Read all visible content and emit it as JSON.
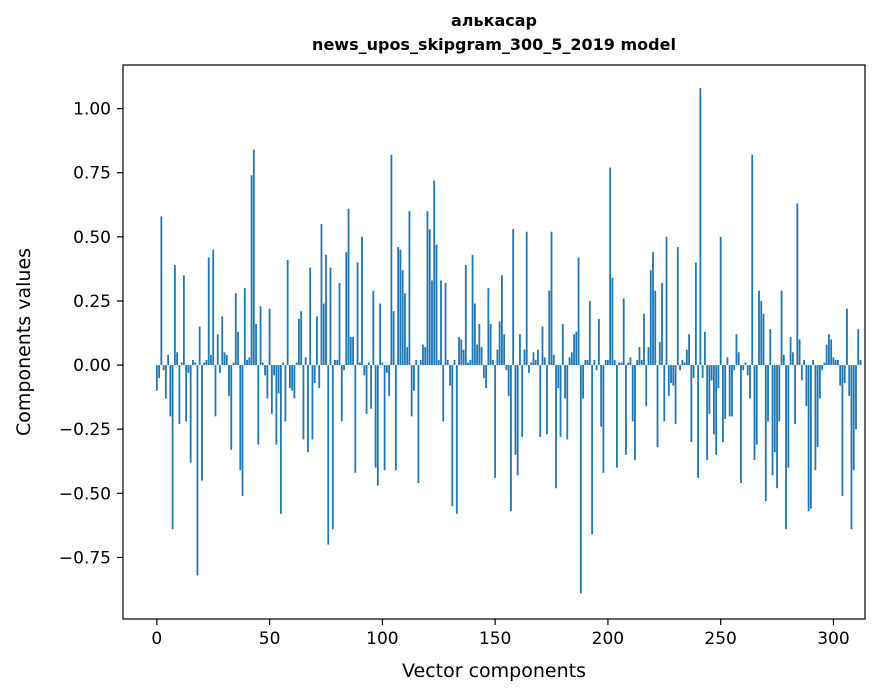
{
  "chart_data": {
    "type": "bar",
    "title": "алькасар",
    "subtitle": "news_upos_skipgram_300_5_2019 model",
    "xlabel": "Vector components",
    "ylabel": "Components values",
    "xlim": [
      -15,
      314
    ],
    "ylim": [
      -0.99,
      1.17
    ],
    "xticks": [
      0,
      50,
      100,
      150,
      200,
      250,
      300
    ],
    "yticks": [
      -0.75,
      -0.5,
      -0.25,
      0.0,
      0.25,
      0.5,
      0.75,
      1.0
    ],
    "ytick_labels": [
      "−0.75",
      "−0.50",
      "−0.25",
      "0.00",
      "0.25",
      "0.50",
      "0.75",
      "1.00"
    ],
    "grid": false,
    "bar_color": "#1f77b4",
    "values": [
      -0.1,
      -0.05,
      0.58,
      -0.02,
      -0.13,
      0.04,
      -0.2,
      -0.64,
      0.39,
      0.05,
      -0.23,
      0.01,
      0.35,
      -0.22,
      -0.03,
      -0.38,
      0.02,
      0.01,
      -0.82,
      0.15,
      -0.45,
      0.01,
      0.02,
      0.42,
      0.04,
      0.45,
      -0.2,
      0.12,
      -0.03,
      0.19,
      0.05,
      0.04,
      -0.12,
      -0.33,
      0.01,
      0.28,
      0.13,
      -0.41,
      -0.51,
      0.3,
      0.02,
      0.03,
      0.74,
      0.84,
      0.16,
      -0.31,
      0.23,
      0.01,
      -0.04,
      -0.13,
      0.22,
      -0.19,
      -0.04,
      -0.31,
      -0.11,
      -0.58,
      0.01,
      -0.22,
      0.41,
      -0.09,
      -0.1,
      -0.13,
      0.01,
      0.18,
      0.21,
      -0.29,
      0.03,
      -0.34,
      0.38,
      -0.29,
      -0.07,
      0.19,
      -0.09,
      0.55,
      0.24,
      0.43,
      -0.7,
      0.38,
      -0.64,
      0.02,
      0.02,
      0.32,
      -0.22,
      -0.02,
      0.44,
      0.61,
      0.11,
      0.11,
      -0.42,
      0.4,
      0.01,
      0.5,
      -0.04,
      -0.19,
      0.01,
      -0.17,
      0.29,
      -0.4,
      -0.47,
      0.24,
      0.01,
      -0.41,
      -0.03,
      -0.12,
      0.82,
      0.21,
      -0.41,
      0.46,
      0.45,
      0.37,
      0.28,
      0.07,
      0.6,
      -0.2,
      -0.1,
      0.02,
      -0.46,
      0.02,
      0.08,
      0.07,
      0.6,
      0.53,
      0.33,
      0.72,
      0.47,
      0.02,
      0.33,
      -0.22,
      0.32,
      0.02,
      -0.08,
      -0.55,
      0.02,
      -0.58,
      0.11,
      0.1,
      0.06,
      0.39,
      0.01,
      0.02,
      0.43,
      0.24,
      0.08,
      0.16,
      0.07,
      -0.05,
      -0.09,
      0.3,
      0.16,
      0.02,
      -0.44,
      0.06,
      0.17,
      0.35,
      0.12,
      -0.02,
      -0.12,
      -0.57,
      0.53,
      -0.35,
      -0.43,
      0.12,
      -0.28,
      0.06,
      0.52,
      -0.03,
      0.01,
      0.05,
      0.02,
      0.06,
      -0.28,
      0.15,
      0.03,
      -0.27,
      0.29,
      0.52,
      0.04,
      -0.48,
      -0.09,
      -0.28,
      0.16,
      -0.13,
      -0.29,
      0.03,
      0.05,
      0.12,
      0.13,
      0.42,
      -0.89,
      -0.13,
      0.02,
      0.02,
      0.25,
      -0.66,
      0.02,
      -0.02,
      0.18,
      -0.24,
      -0.42,
      0.02,
      0.02,
      0.77,
      0.34,
      0.02,
      -0.4,
      0.01,
      0.01,
      0.26,
      -0.35,
      0.01,
      0.03,
      -0.22,
      -0.37,
      0.02,
      0.07,
      0.02,
      0.2,
      -0.16,
      0.07,
      0.37,
      0.44,
      0.29,
      -0.32,
      0.09,
      0.32,
      -0.22,
      0.5,
      -0.12,
      -0.07,
      -0.08,
      -0.23,
      0.46,
      -0.02,
      0.02,
      0.01,
      0.06,
      0.12,
      -0.3,
      -0.05,
      0.4,
      -0.44,
      1.08,
      -0.05,
      0.13,
      -0.37,
      -0.19,
      -0.06,
      -0.27,
      -0.35,
      -0.09,
      0.5,
      -0.3,
      -0.21,
      0.03,
      -0.2,
      -0.2,
      -0.02,
      0.12,
      0.05,
      -0.46,
      -0.02,
      0.01,
      -0.04,
      -0.13,
      0.82,
      -0.37,
      -0.31,
      0.29,
      0.25,
      0.2,
      -0.53,
      -0.22,
      0.14,
      -0.43,
      -0.34,
      -0.48,
      -0.22,
      0.29,
      0.04,
      -0.64,
      -0.4,
      0.11,
      0.05,
      -0.23,
      0.63,
      0.1,
      -0.06,
      0.02,
      -0.16,
      -0.57,
      -0.56,
      0.02,
      -0.41,
      -0.32,
      -0.13,
      -0.02,
      0.01,
      0.08,
      0.12,
      0.1,
      0.03,
      0.02,
      0.02,
      -0.08,
      -0.51,
      -0.07,
      0.22,
      -0.12,
      -0.64,
      -0.41,
      -0.25,
      0.14,
      0.02
    ]
  }
}
